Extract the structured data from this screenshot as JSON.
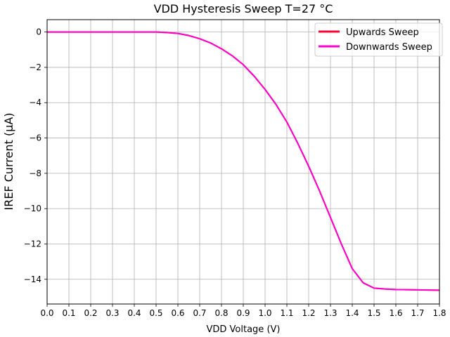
{
  "chart_data": {
    "type": "line",
    "title": "VDD Hysteresis Sweep T=27 °C",
    "xlabel": "VDD Voltage (V)",
    "ylabel": "IREF Current (µA)",
    "xlim": [
      0.0,
      1.8
    ],
    "ylim": [
      -15.4,
      0.7
    ],
    "xticks": [
      "0.0",
      "0.1",
      "0.2",
      "0.3",
      "0.4",
      "0.5",
      "0.6",
      "0.7",
      "0.8",
      "0.9",
      "1.0",
      "1.1",
      "1.2",
      "1.3",
      "1.4",
      "1.5",
      "1.6",
      "1.7",
      "1.8"
    ],
    "yticks": [
      "0",
      "−2",
      "−4",
      "−6",
      "−8",
      "−10",
      "−12",
      "−14"
    ],
    "grid": true,
    "legend_position": "top-right",
    "x": [
      0.0,
      0.1,
      0.2,
      0.3,
      0.4,
      0.5,
      0.55,
      0.6,
      0.65,
      0.7,
      0.75,
      0.8,
      0.85,
      0.9,
      0.95,
      1.0,
      1.05,
      1.1,
      1.15,
      1.2,
      1.25,
      1.3,
      1.35,
      1.4,
      1.45,
      1.5,
      1.55,
      1.6,
      1.7,
      1.8
    ],
    "series": [
      {
        "name": "Upwards Sweep",
        "color": "#ff0033",
        "values": [
          0,
          0,
          0,
          0,
          0,
          0,
          -0.03,
          -0.08,
          -0.2,
          -0.38,
          -0.62,
          -0.95,
          -1.35,
          -1.85,
          -2.5,
          -3.25,
          -4.1,
          -5.1,
          -6.3,
          -7.6,
          -9.0,
          -10.5,
          -12.0,
          -13.4,
          -14.2,
          -14.5,
          -14.55,
          -14.58,
          -14.6,
          -14.62
        ]
      },
      {
        "name": "Downwards Sweep",
        "color": "#ff00cc",
        "values": [
          0,
          0,
          0,
          0,
          0,
          0,
          -0.03,
          -0.08,
          -0.2,
          -0.38,
          -0.62,
          -0.95,
          -1.35,
          -1.85,
          -2.5,
          -3.25,
          -4.1,
          -5.1,
          -6.3,
          -7.6,
          -9.0,
          -10.5,
          -12.0,
          -13.4,
          -14.2,
          -14.5,
          -14.55,
          -14.58,
          -14.6,
          -14.62
        ]
      }
    ],
    "colors": {
      "grid": "#b0b0b0",
      "axis": "#000000",
      "legend_border": "#cccccc"
    }
  }
}
